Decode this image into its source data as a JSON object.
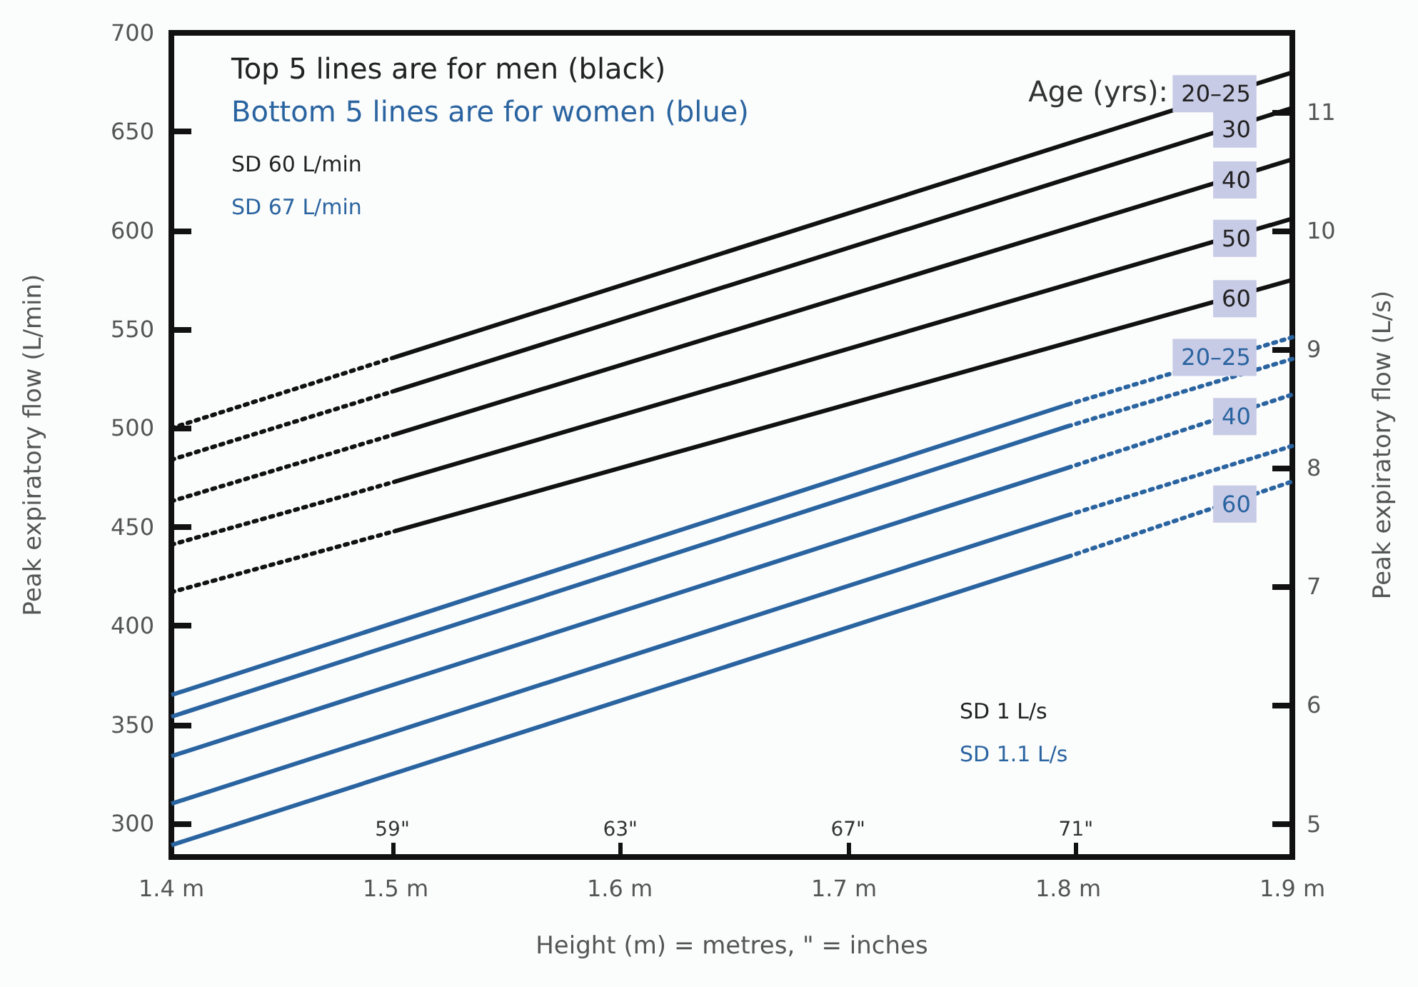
{
  "chart_data": {
    "type": "line",
    "xlabel": "Height (m) = metres, \" = inches",
    "ylabel": "Peak expiratory flow (L/min)",
    "y2label": "Peak expiratory flow (L/s)",
    "annotations": [
      "Top 5 lines are for men (black)",
      "Bottom 5 lines are for women (blue)",
      "SD 60 L/min",
      "SD 67 L/min",
      "SD 1 L/s",
      "SD 1.1 L/s",
      "Age (yrs):"
    ],
    "xlim": [
      1.4,
      1.9
    ],
    "xticks": [
      {
        "value": 1.4,
        "label": "1.4 m"
      },
      {
        "value": 1.5,
        "label": "1.5 m"
      },
      {
        "value": 1.6,
        "label": "1.6 m"
      },
      {
        "value": 1.7,
        "label": "1.7 m"
      },
      {
        "value": 1.8,
        "label": "1.8 m"
      },
      {
        "value": 1.9,
        "label": "1.9 m"
      }
    ],
    "x2lim": [
      55.12,
      74.8
    ],
    "x2ticks": [
      {
        "value": 59,
        "label": "59\""
      },
      {
        "value": 63,
        "label": "63\""
      },
      {
        "value": 67,
        "label": "67\""
      },
      {
        "value": 71,
        "label": "71\""
      }
    ],
    "ylim": [
      283,
      700
    ],
    "yticks": [
      300,
      350,
      400,
      450,
      500,
      550,
      600,
      650,
      700
    ],
    "y2lim": [
      4.72,
      11.67
    ],
    "y2ticks": [
      5,
      6,
      7,
      8,
      9,
      10,
      11
    ],
    "grid": false,
    "legend": false,
    "marker": "none",
    "series": [
      {
        "name": "20–25",
        "color": "#111111",
        "x": [
          1.5,
          1.9
        ],
        "values": [
          536,
          680
        ],
        "line_style": "solid"
      },
      {
        "color": "#111111",
        "x": [
          1.4,
          1.5
        ],
        "values": [
          500,
          536
        ],
        "line_style": "dotted"
      },
      {
        "name": "30",
        "color": "#111111",
        "x": [
          1.5,
          1.9
        ],
        "values": [
          519,
          662
        ],
        "line_style": "solid"
      },
      {
        "color": "#111111",
        "x": [
          1.4,
          1.5
        ],
        "values": [
          484,
          519
        ],
        "line_style": "dotted"
      },
      {
        "name": "40",
        "color": "#111111",
        "x": [
          1.5,
          1.9
        ],
        "values": [
          497,
          636
        ],
        "line_style": "solid"
      },
      {
        "color": "#111111",
        "x": [
          1.4,
          1.5
        ],
        "values": [
          463,
          497
        ],
        "line_style": "dotted"
      },
      {
        "name": "50",
        "color": "#111111",
        "x": [
          1.5,
          1.9
        ],
        "values": [
          473,
          606
        ],
        "line_style": "solid"
      },
      {
        "color": "#111111",
        "x": [
          1.4,
          1.5
        ],
        "values": [
          441,
          473
        ],
        "line_style": "dotted"
      },
      {
        "name": "60",
        "color": "#111111",
        "x": [
          1.5,
          1.9
        ],
        "values": [
          448,
          575
        ],
        "line_style": "solid"
      },
      {
        "color": "#111111",
        "x": [
          1.4,
          1.5
        ],
        "values": [
          417,
          448
        ],
        "line_style": "dotted"
      },
      {
        "color": "#2a64a0",
        "x": [
          1.4,
          1.8
        ],
        "values": [
          365,
          512
        ],
        "line_style": "solid"
      },
      {
        "name": "20–25",
        "color": "#2a64a0",
        "x": [
          1.8,
          1.9
        ],
        "values": [
          512,
          546
        ],
        "line_style": "dotted"
      },
      {
        "color": "#2a64a0",
        "x": [
          1.4,
          1.8
        ],
        "values": [
          354,
          501
        ],
        "line_style": "solid"
      },
      {
        "color": "#2a64a0",
        "x": [
          1.8,
          1.9
        ],
        "values": [
          501,
          535
        ],
        "line_style": "dotted"
      },
      {
        "color": "#2a64a0",
        "x": [
          1.4,
          1.8
        ],
        "values": [
          334,
          480
        ],
        "line_style": "solid"
      },
      {
        "name": "40",
        "color": "#2a64a0",
        "x": [
          1.8,
          1.9
        ],
        "values": [
          480,
          517
        ],
        "line_style": "dotted"
      },
      {
        "color": "#2a64a0",
        "x": [
          1.4,
          1.8
        ],
        "values": [
          310,
          456
        ],
        "line_style": "solid"
      },
      {
        "color": "#2a64a0",
        "x": [
          1.8,
          1.9
        ],
        "values": [
          456,
          491
        ],
        "line_style": "dotted"
      },
      {
        "color": "#2a64a0",
        "x": [
          1.4,
          1.8
        ],
        "values": [
          289,
          435
        ],
        "line_style": "solid"
      },
      {
        "name": "60",
        "color": "#2a64a0",
        "x": [
          1.8,
          1.9
        ],
        "values": [
          435,
          473
        ],
        "line_style": "dotted"
      }
    ]
  }
}
